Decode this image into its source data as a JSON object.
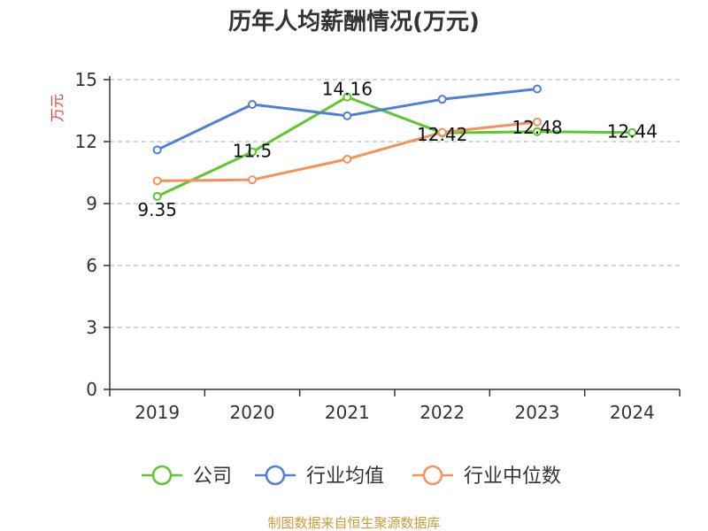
{
  "chart_data": {
    "type": "line",
    "title": "历年人均薪酬情况(万元)",
    "ylabel": "万元",
    "xlabel": "",
    "categories": [
      "2019",
      "2020",
      "2021",
      "2022",
      "2023",
      "2024"
    ],
    "yticks": [
      "0",
      "3",
      "6",
      "9",
      "12",
      "15"
    ],
    "ylim": [
      0,
      15
    ],
    "grid": true,
    "legend_position": "bottom",
    "series": [
      {
        "name": "公司",
        "color": "#5ec72f",
        "values": [
          9.35,
          11.5,
          14.16,
          12.42,
          12.48,
          12.44
        ],
        "labels": [
          "9.35",
          "11.5",
          "14.16",
          "12.42",
          "12.48",
          "12.44"
        ]
      },
      {
        "name": "行业均值",
        "color": "#4f80d6",
        "values": [
          11.6,
          13.8,
          13.25,
          14.05,
          14.55,
          null
        ]
      },
      {
        "name": "行业中位数",
        "color": "#f5925a",
        "values": [
          10.1,
          10.15,
          11.15,
          12.45,
          12.95,
          null
        ]
      }
    ],
    "source": "制图数据来自恒生聚源数据库"
  }
}
